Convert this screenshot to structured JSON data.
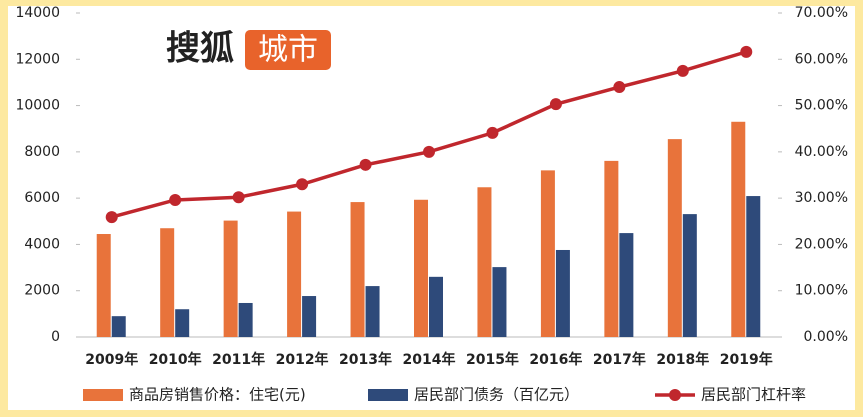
{
  "chart_data": {
    "type": "bar-line",
    "annotations": [
      "搜狐",
      "城市"
    ],
    "categories": [
      "2009年",
      "2010年",
      "2011年",
      "2012年",
      "2013年",
      "2014年",
      "2015年",
      "2016年",
      "2017年",
      "2018年",
      "2019年"
    ],
    "series": [
      {
        "name": "商品房销售价格：住宅(元)",
        "type": "bar",
        "color": "#e8733b",
        "values": [
          4450,
          4700,
          5030,
          5420,
          5830,
          5930,
          6470,
          7200,
          7610,
          8550,
          9300
        ]
      },
      {
        "name": "居民部门债务（百亿元）",
        "type": "bar",
        "color": "#2e4a7a",
        "values": [
          900,
          1200,
          1470,
          1770,
          2200,
          2600,
          3020,
          3760,
          4490,
          5310,
          6090
        ]
      },
      {
        "name": "居民部门杠杆率",
        "type": "line",
        "axis": "y2",
        "color": "#c0272d",
        "values": [
          25.9,
          29.6,
          30.2,
          33.0,
          37.2,
          40.0,
          44.1,
          50.3,
          54.0,
          57.5,
          61.6
        ]
      }
    ],
    "ylim": [
      0,
      14000
    ],
    "yticks": [
      0,
      2000,
      4000,
      6000,
      8000,
      10000,
      12000,
      14000
    ],
    "y2lim": [
      0,
      70
    ],
    "y2ticks": [
      {
        "value": 0,
        "label": "0.00%"
      },
      {
        "value": 10,
        "label": "10.00%"
      },
      {
        "value": 20,
        "label": "20.00%"
      },
      {
        "value": 30,
        "label": "30.00%"
      },
      {
        "value": 40,
        "label": "40.00%"
      },
      {
        "value": 50,
        "label": "50.00%"
      },
      {
        "value": 60,
        "label": "60.00%"
      },
      {
        "value": 70,
        "label": "70.00%"
      }
    ],
    "grid": false,
    "legend": "bottom"
  }
}
